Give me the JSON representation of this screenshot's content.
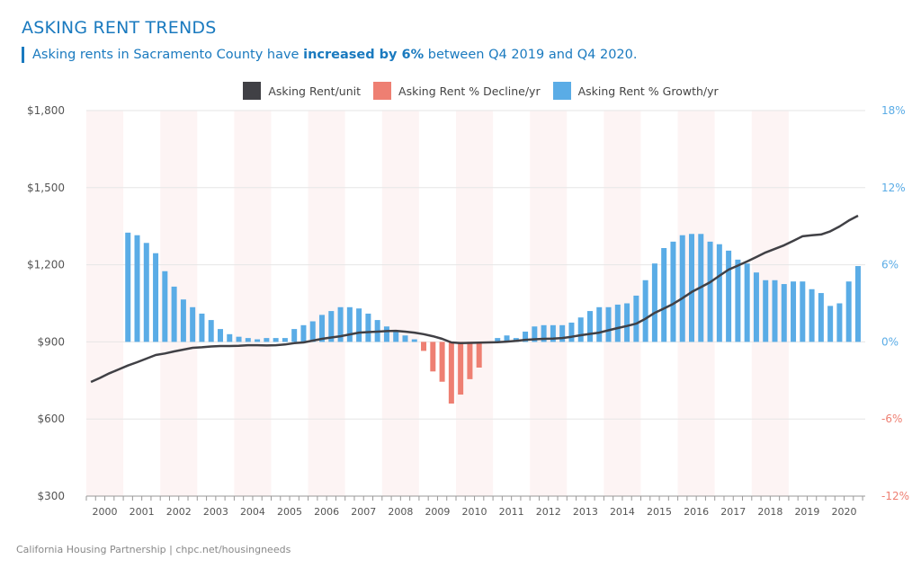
{
  "title": "ASKING RENT TRENDS",
  "subtitle": {
    "before": "Asking rents in Sacramento County have ",
    "bold": "increased by 6%",
    "after": " between Q4 2019 and Q4 2020."
  },
  "footer": "California Housing Partnership | chpc.net/housingneeds",
  "colors": {
    "rent_line": "#404045",
    "decline": "#ee7f72",
    "growth": "#5aace6",
    "band": "#fdf4f4",
    "title": "#1a7abf"
  },
  "chart_data": {
    "type": "bar+line",
    "legend": [
      "Asking Rent/unit",
      "Asking Rent % Decline/yr",
      "Asking Rent % Growth/yr"
    ],
    "legend_placement": "top",
    "years": [
      "2000",
      "2001",
      "2002",
      "2003",
      "2004",
      "2005",
      "2006",
      "2007",
      "2008",
      "2009",
      "2010",
      "2011",
      "2012",
      "2013",
      "2014",
      "2015",
      "2016",
      "2017",
      "2018",
      "2019",
      "2020"
    ],
    "left_axis": {
      "ticks": [
        "$300",
        "$600",
        "$900",
        "$1,200",
        "$1,500",
        "$1,800"
      ],
      "range": [
        300,
        1800
      ]
    },
    "right_axis": {
      "ticks": [
        "-12%",
        "-6%",
        "0%",
        "6%",
        "12%",
        "18%"
      ],
      "range": [
        -12,
        18
      ]
    },
    "grid": true,
    "shaded_years": [
      "2000",
      "2002",
      "2004",
      "2006",
      "2008",
      "2010",
      "2012",
      "2014",
      "2016",
      "2018"
    ],
    "series": [
      {
        "name": "Asking Rent/unit",
        "axis": "left",
        "type": "line",
        "values": [
          744,
          760,
          778,
          793,
          808,
          821,
          835,
          849,
          855,
          863,
          870,
          877,
          879,
          882,
          884,
          884,
          885,
          887,
          887,
          886,
          887,
          890,
          895,
          898,
          905,
          912,
          917,
          922,
          929,
          936,
          938,
          940,
          942,
          943,
          940,
          936,
          930,
          922,
          912,
          898,
          895,
          896,
          897,
          898,
          899,
          901,
          904,
          908,
          910,
          912,
          913,
          915,
          920,
          926,
          931,
          936,
          945,
          954,
          962,
          971,
          990,
          1013,
          1030,
          1048,
          1070,
          1094,
          1113,
          1132,
          1157,
          1181,
          1197,
          1213,
          1230,
          1248,
          1262,
          1276,
          1293,
          1311,
          1315,
          1318,
          1330,
          1349,
          1372,
          1391
        ]
      },
      {
        "name": "Asking Rent % Change/yr",
        "axis": "right",
        "type": "bar",
        "values": [
          null,
          null,
          null,
          null,
          8.5,
          8.3,
          7.7,
          6.9,
          5.5,
          4.3,
          3.3,
          2.7,
          2.2,
          1.7,
          1.0,
          0.6,
          0.4,
          0.3,
          0.2,
          0.3,
          0.3,
          0.3,
          1.0,
          1.3,
          1.6,
          2.1,
          2.4,
          2.7,
          2.7,
          2.6,
          2.2,
          1.7,
          1.2,
          0.8,
          0.5,
          0.2,
          -0.7,
          -2.3,
          -3.1,
          -4.8,
          -4.1,
          -2.9,
          -2.0,
          0,
          0.3,
          0.5,
          0.3,
          0.8,
          1.2,
          1.3,
          1.3,
          1.3,
          1.5,
          1.9,
          2.4,
          2.7,
          2.7,
          2.9,
          3.0,
          3.6,
          4.8,
          6.1,
          7.3,
          7.8,
          8.3,
          8.4,
          8.4,
          7.8,
          7.6,
          7.1,
          6.4,
          6.1,
          5.4,
          4.8,
          4.8,
          4.5,
          4.7,
          4.7,
          4.1,
          3.8,
          2.8,
          3.0,
          4.7,
          5.9
        ]
      }
    ]
  }
}
